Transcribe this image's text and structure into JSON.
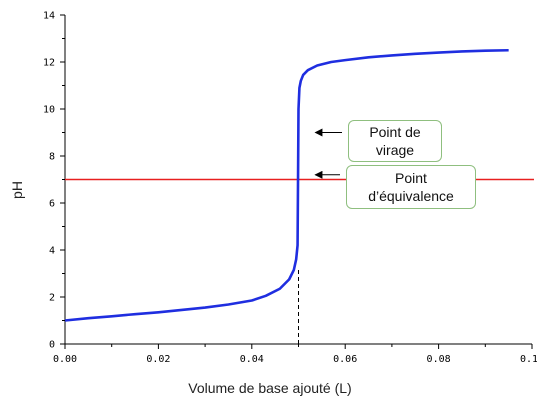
{
  "chart_data": {
    "type": "line",
    "title": "",
    "xlabel": "Volume de base ajouté (L)",
    "ylabel": "pH",
    "xlim": [
      0,
      0.1
    ],
    "ylim": [
      0,
      14
    ],
    "x_ticks": [
      "0.00",
      "0.02",
      "0.04",
      "0.06",
      "0.08",
      "0.10"
    ],
    "y_ticks": [
      "0",
      "2",
      "4",
      "6",
      "8",
      "10",
      "12",
      "14"
    ],
    "grid": false,
    "series": [
      {
        "color": "#1f2ee0",
        "x": [
          0.0,
          0.005,
          0.01,
          0.015,
          0.02,
          0.025,
          0.03,
          0.035,
          0.04,
          0.043,
          0.046,
          0.048,
          0.049,
          0.0495,
          0.0498,
          0.0499,
          0.05,
          0.0502,
          0.0505,
          0.051,
          0.052,
          0.054,
          0.057,
          0.06,
          0.065,
          0.07,
          0.075,
          0.08,
          0.085,
          0.09,
          0.095
        ],
        "y": [
          1.0,
          1.1,
          1.18,
          1.27,
          1.35,
          1.45,
          1.55,
          1.68,
          1.85,
          2.05,
          2.35,
          2.75,
          3.15,
          3.6,
          4.2,
          7.0,
          10.0,
          10.9,
          11.2,
          11.45,
          11.65,
          11.85,
          12.0,
          12.08,
          12.2,
          12.28,
          12.35,
          12.4,
          12.45,
          12.48,
          12.5
        ]
      }
    ],
    "reference_lines": [
      {
        "orientation": "horizontal",
        "y": 7,
        "color": "#e82020"
      },
      {
        "orientation": "vertical",
        "x": 0.05,
        "y_from": 0,
        "y_to": 3.2,
        "style": "dashed",
        "color": "#000000"
      }
    ],
    "annotations": [
      {
        "lines": [
          "Point de",
          "virage"
        ],
        "arrow_to": {
          "x": 0.0502,
          "y": 9.0
        }
      },
      {
        "lines": [
          "Point",
          "d’équivalence"
        ],
        "arrow_to": {
          "x": 0.0502,
          "y": 7.2
        }
      }
    ]
  }
}
